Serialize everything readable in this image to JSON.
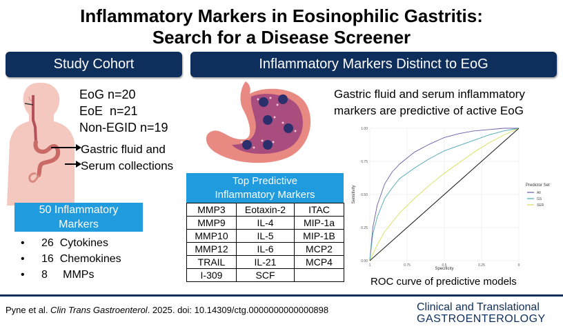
{
  "title": {
    "line1": "Inflammatory Markers in Eosinophilic Gastritis:",
    "line2": "Search for a Disease Screener"
  },
  "banners": {
    "left": "Study Cohort",
    "right": "Inflammatory Markers Distinct to EoG"
  },
  "cohort": [
    "EoG n=20",
    "EoE  n=21",
    "Non-EGID n=19"
  ],
  "collections": [
    "Gastric fluid and",
    "Serum collections"
  ],
  "markers_box": {
    "line1": "50 Inflammatory",
    "line2": "Markers"
  },
  "bullets": [
    {
      "num": "26",
      "label": "Cytokines"
    },
    {
      "num": "16",
      "label": "Chemokines"
    },
    {
      "num": "8",
      "label": "MMPs"
    }
  ],
  "bullet_char": "•",
  "top_predictive": {
    "line1": "Top Predictive",
    "line2": "Inflammatory Markers",
    "rows": [
      [
        "MMP3",
        "Eotaxin-2",
        "ITAC"
      ],
      [
        "MMP9",
        "IL-4",
        "MIP-1a"
      ],
      [
        "MMP10",
        "IL-5",
        "MIP-1B"
      ],
      [
        "MMP12",
        "IL-6",
        "MCP2"
      ],
      [
        "TRAIL",
        "IL-21",
        "MCP4"
      ],
      [
        "I-309",
        "SCF",
        ""
      ]
    ]
  },
  "predictive_text": {
    "line1": "Gastric fluid and serum inflammatory",
    "line2": "markers are predictive of active EoG"
  },
  "chart_data": {
    "type": "line",
    "title": "",
    "xlabel": "Specificity",
    "ylabel": "Sensitivity",
    "xlim": [
      1,
      0
    ],
    "ylim": [
      0,
      1
    ],
    "x_ticks": [
      "1",
      "0.75",
      "0.5",
      "0.25",
      "0"
    ],
    "y_ticks": [
      "0.00",
      "0.25",
      "0.50",
      "0.75",
      "1.00"
    ],
    "grid": true,
    "legend": {
      "title": "Predictor Set",
      "placement": "right"
    },
    "series": [
      {
        "name": "All",
        "color": "#6b5aa6",
        "x": [
          1,
          0.98,
          0.95,
          0.9,
          0.85,
          0.8,
          0.7,
          0.6,
          0.5,
          0.4,
          0.3,
          0.2,
          0.1,
          0
        ],
        "y": [
          0,
          0.25,
          0.42,
          0.58,
          0.67,
          0.73,
          0.82,
          0.88,
          0.93,
          0.96,
          0.98,
          0.99,
          1.0,
          1.0
        ]
      },
      {
        "name": "GS",
        "color": "#4aa8b0",
        "x": [
          1,
          0.98,
          0.95,
          0.9,
          0.85,
          0.8,
          0.7,
          0.6,
          0.5,
          0.4,
          0.3,
          0.2,
          0.1,
          0
        ],
        "y": [
          0,
          0.2,
          0.33,
          0.47,
          0.55,
          0.62,
          0.7,
          0.77,
          0.83,
          0.87,
          0.91,
          0.95,
          0.98,
          1.0
        ]
      },
      {
        "name": "SER",
        "color": "#d9de55",
        "x": [
          1,
          0.95,
          0.9,
          0.8,
          0.7,
          0.6,
          0.5,
          0.4,
          0.3,
          0.2,
          0.1,
          0
        ],
        "y": [
          0,
          0.12,
          0.22,
          0.36,
          0.47,
          0.57,
          0.66,
          0.74,
          0.82,
          0.89,
          0.95,
          1.0
        ]
      },
      {
        "name": "reference",
        "color": "#222222",
        "x": [
          1,
          0
        ],
        "y": [
          0,
          1
        ]
      }
    ]
  },
  "roc_caption": "ROC curve of predictive models",
  "citation": {
    "authors": "Pyne et al. ",
    "journal": "Clin Trans Gastroenterol",
    "rest": ". 2025. doi: 10.14309/ctg.0000000000000898"
  },
  "journal_logo": {
    "line1": "Clinical and Translational",
    "line2": "GASTROENTEROLOGY"
  },
  "colors": {
    "navy": "#0e2e5c",
    "blue": "#1f9bde"
  }
}
